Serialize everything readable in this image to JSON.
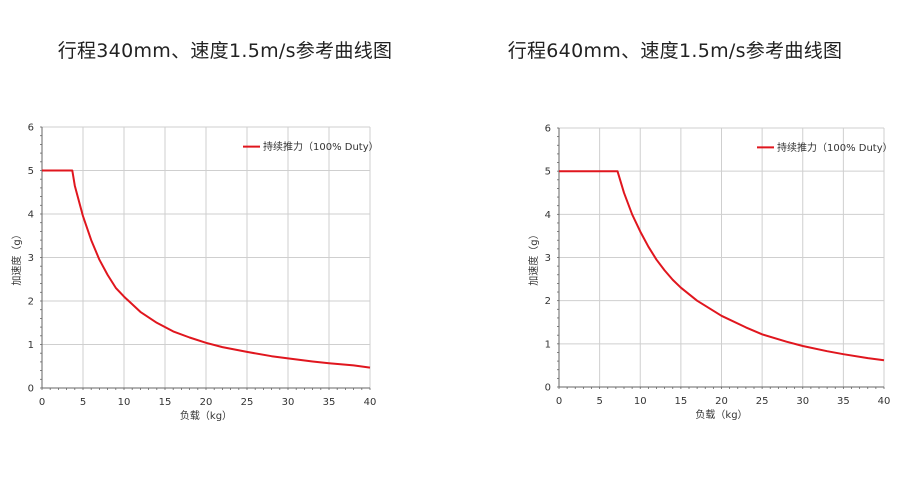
{
  "chart_data": [
    {
      "type": "line",
      "title": "行程340mm、速度1.5m/s参考曲线图",
      "xlabel": "负载（kg）",
      "ylabel": "加速度（g）",
      "xlim": [
        0,
        40
      ],
      "ylim": [
        0,
        6
      ],
      "xticks": [
        "0",
        "5",
        "10",
        "15",
        "20",
        "25",
        "30",
        "35",
        "40"
      ],
      "yticks": [
        "0",
        "1",
        "2",
        "3",
        "4",
        "5",
        "6"
      ],
      "grid": true,
      "legend_position": "top-right",
      "color": "#e0161e",
      "series": [
        {
          "name": "持续推力（100% Duty）",
          "x": [
            0,
            3.7,
            4,
            5,
            6,
            7,
            8,
            9,
            10,
            12,
            14,
            16,
            18,
            20,
            22,
            25,
            28,
            30,
            33,
            35,
            38,
            40
          ],
          "y": [
            5,
            5,
            4.65,
            3.95,
            3.4,
            2.95,
            2.6,
            2.3,
            2.1,
            1.75,
            1.5,
            1.3,
            1.16,
            1.04,
            0.94,
            0.83,
            0.73,
            0.68,
            0.61,
            0.57,
            0.52,
            0.47
          ]
        }
      ]
    },
    {
      "type": "line",
      "title": "行程640mm、速度1.5m/s参考曲线图",
      "xlabel": "负载（kg）",
      "ylabel": "加速度（g）",
      "xlim": [
        0,
        40
      ],
      "ylim": [
        0,
        6
      ],
      "xticks": [
        "0",
        "5",
        "10",
        "15",
        "20",
        "25",
        "30",
        "35",
        "40"
      ],
      "yticks": [
        "0",
        "1",
        "2",
        "3",
        "4",
        "5",
        "6"
      ],
      "grid": true,
      "legend_position": "top-right",
      "color": "#e0161e",
      "series": [
        {
          "name": "持续推力（100% Duty）",
          "x": [
            0,
            7.2,
            8,
            9,
            10,
            11,
            12,
            13,
            14,
            15,
            17,
            20,
            23,
            25,
            28,
            30,
            33,
            35,
            38,
            40
          ],
          "y": [
            5,
            5,
            4.5,
            4.0,
            3.6,
            3.25,
            2.95,
            2.7,
            2.48,
            2.3,
            2.0,
            1.65,
            1.38,
            1.22,
            1.05,
            0.95,
            0.83,
            0.76,
            0.67,
            0.62
          ]
        }
      ]
    }
  ]
}
